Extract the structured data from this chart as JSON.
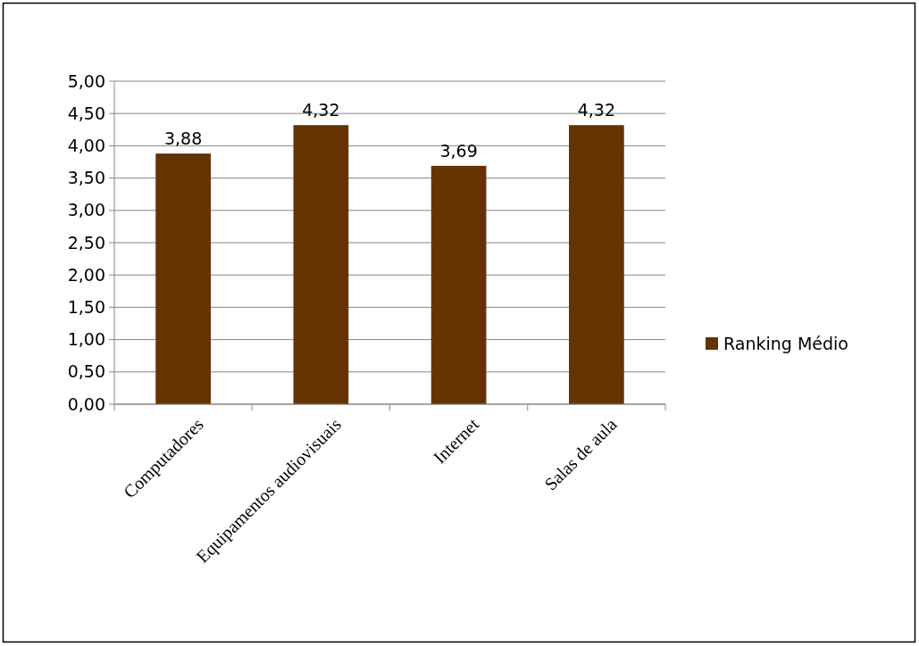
{
  "chart_data": {
    "type": "bar",
    "categories": [
      "Computadores",
      "Equipamentos audiovisuais",
      "Internet",
      "Salas de aula"
    ],
    "series": [
      {
        "name": "Ranking Médio",
        "color": "#663300",
        "values": [
          3.88,
          4.32,
          3.69,
          4.32
        ],
        "value_labels": [
          "3,88",
          "4,32",
          "3,69",
          "4,32"
        ]
      }
    ],
    "ylim": [
      0,
      5
    ],
    "yticks": [
      {
        "value": 0,
        "label": "0,00"
      },
      {
        "value": 0.5,
        "label": "0,50"
      },
      {
        "value": 1,
        "label": "1,00"
      },
      {
        "value": 1.5,
        "label": "1,50"
      },
      {
        "value": 2,
        "label": "2,00"
      },
      {
        "value": 2.5,
        "label": "2,50"
      },
      {
        "value": 3,
        "label": "3,00"
      },
      {
        "value": 3.5,
        "label": "3,50"
      },
      {
        "value": 4,
        "label": "4,00"
      },
      {
        "value": 4.5,
        "label": "4,50"
      },
      {
        "value": 5,
        "label": "5,00"
      }
    ],
    "grid": "y",
    "legend": "right"
  }
}
